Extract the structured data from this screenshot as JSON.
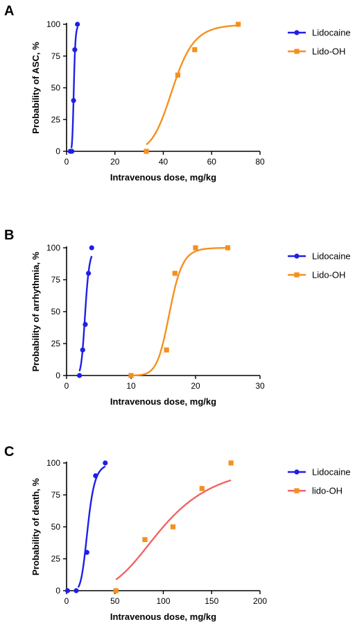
{
  "chart_data": [
    {
      "type": "scatter",
      "panel": "A",
      "xlabel": "Intravenous dose, mg/kg",
      "ylabel": "Probability of ASC, %",
      "xlim": [
        0,
        80
      ],
      "ylim": [
        0,
        100
      ],
      "xticks": [
        "0",
        "20",
        "40",
        "60",
        "80"
      ],
      "yticks": [
        "0",
        "25",
        "50",
        "75",
        "100"
      ],
      "legend_position": "right",
      "series": [
        {
          "name": "Lidocaine",
          "color": "#1f1fe6",
          "marker": "circle",
          "points": [
            [
              1.5,
              0
            ],
            [
              2.2,
              0
            ],
            [
              2.9,
              40
            ],
            [
              3.4,
              80
            ],
            [
              4.5,
              100
            ]
          ],
          "fit_curve": {
            "ec50": 3.0,
            "hill": 9,
            "x_range": [
              2.0,
              4.6
            ]
          }
        },
        {
          "name": "Lido-OH",
          "color": "#f5901e",
          "marker": "square",
          "points": [
            [
              33,
              0
            ],
            [
              46,
              60
            ],
            [
              53,
              80
            ],
            [
              71,
              100
            ]
          ],
          "fit_curve": {
            "ec50": 44,
            "hill": 10,
            "x_range": [
              33,
              71
            ]
          }
        }
      ]
    },
    {
      "type": "scatter",
      "panel": "B",
      "xlabel": "Intravenous dose, mg/kg",
      "ylabel": "Probability of arrhythmia, %",
      "xlim": [
        0,
        30
      ],
      "ylim": [
        0,
        100
      ],
      "xticks": [
        "0",
        "10",
        "20",
        "30"
      ],
      "yticks": [
        "0",
        "25",
        "50",
        "75",
        "100"
      ],
      "legend_position": "right",
      "series": [
        {
          "name": "Lidocaine",
          "color": "#1f1fe6",
          "marker": "circle",
          "points": [
            [
              2,
              0
            ],
            [
              2.5,
              20
            ],
            [
              2.9,
              40
            ],
            [
              3.4,
              80
            ],
            [
              3.9,
              100
            ]
          ],
          "fit_curve": {
            "ec50": 2.9,
            "hill": 9,
            "x_range": [
              2.0,
              3.9
            ]
          }
        },
        {
          "name": "Lido-OH",
          "color": "#f5901e",
          "marker": "square",
          "points": [
            [
              10,
              0
            ],
            [
              15.5,
              20
            ],
            [
              16.8,
              80
            ],
            [
              20,
              100
            ],
            [
              25,
              100
            ]
          ],
          "fit_curve": {
            "ec50": 16,
            "hill": 16,
            "x_range": [
              10,
              25
            ]
          }
        }
      ]
    },
    {
      "type": "scatter",
      "panel": "C",
      "xlabel": "Intravenous dose, mg/kg",
      "ylabel": "Probability of death, %",
      "xlim": [
        0,
        200
      ],
      "ylim": [
        0,
        100
      ],
      "xticks": [
        "0",
        "50",
        "100",
        "150",
        "200"
      ],
      "yticks": [
        "0",
        "25",
        "50",
        "75",
        "100"
      ],
      "legend_position": "right",
      "series": [
        {
          "name": "Lidocaine",
          "color": "#1f1fe6",
          "marker": "circle",
          "points": [
            [
              1,
              0
            ],
            [
              10,
              0
            ],
            [
              21,
              30
            ],
            [
              30,
              90
            ],
            [
              40,
              100
            ]
          ],
          "fit_curve": {
            "ec50": 22,
            "hill": 6,
            "x_range": [
              12,
              40
            ]
          }
        },
        {
          "name": "lido-OH",
          "color": "#f5901e",
          "line_color": "#f06464",
          "marker": "square",
          "points": [
            [
              51,
              0
            ],
            [
              81,
              40
            ],
            [
              110,
              50
            ],
            [
              140,
              80
            ],
            [
              170,
              100
            ]
          ],
          "fit_curve": {
            "ec50": 100,
            "hill": 3.5,
            "x_range": [
              51,
              170
            ]
          }
        }
      ]
    }
  ]
}
